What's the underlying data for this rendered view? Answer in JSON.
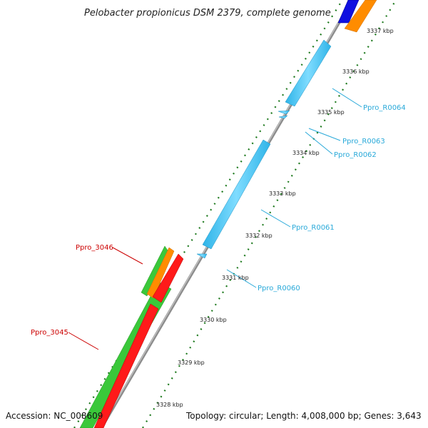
{
  "title": "Pelobacter propionicus DSM 2379, complete genome",
  "footer": {
    "accession": "Accession: NC_008609",
    "summary": "Topology: circular; Length: 4,008,000 bp; Genes: 3,643"
  },
  "colors": {
    "backbone": "#8c8c8c",
    "tick": "#1e7a1e",
    "rna": "#3cc8f5",
    "rna_label": "#29a9d9",
    "cds_forward": "#ff8c00",
    "cds_forward_2": "#3ac83a",
    "cds_reverse": "#ff1a1a",
    "locus_label_red": "#cc0000",
    "blue_feature": "#1010e0"
  },
  "ticks": [
    "3328 kbp",
    "3329 kbp",
    "3330 kbp",
    "3331 kbp",
    "3332 kbp",
    "3333 kbp",
    "3334 kbp",
    "3335 kbp",
    "3336 kbp",
    "3337 kbp"
  ],
  "gene_labels": [
    {
      "text": "Ppro_R0064",
      "kind": "rna"
    },
    {
      "text": "Ppro_R0063",
      "kind": "rna"
    },
    {
      "text": "Ppro_R0062",
      "kind": "rna"
    },
    {
      "text": "Ppro_R0061",
      "kind": "rna"
    },
    {
      "text": "Ppro_R0060",
      "kind": "rna"
    },
    {
      "text": "Ppro_3046",
      "kind": "cds"
    },
    {
      "text": "Ppro_3045",
      "kind": "cds"
    }
  ]
}
